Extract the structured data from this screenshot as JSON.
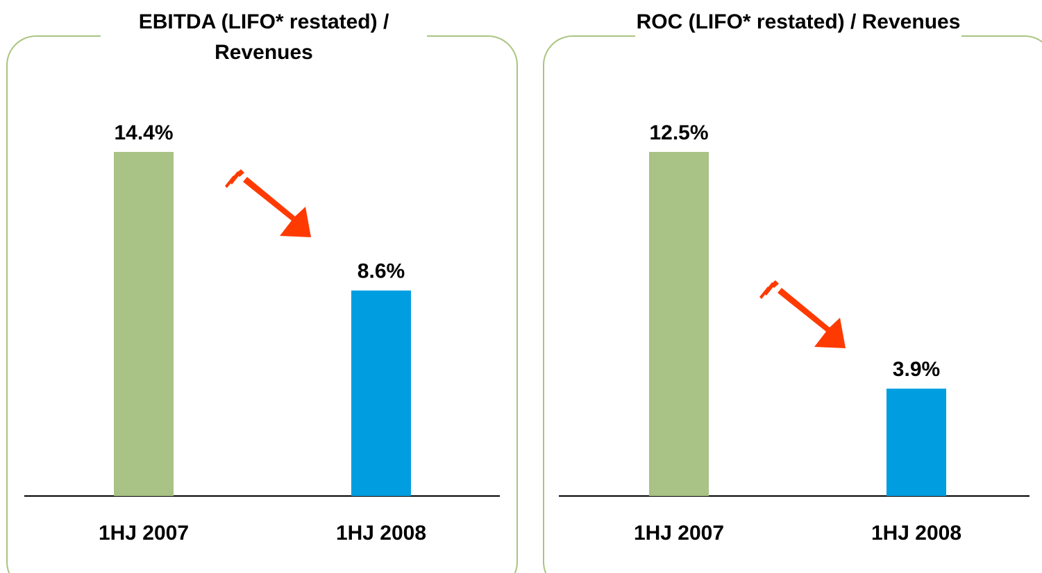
{
  "chart_data": [
    {
      "type": "bar",
      "title": "EBITDA (LIFO* restated) / Revenues",
      "categories": [
        "1HJ 2007",
        "1HJ 2008"
      ],
      "values": [
        14.4,
        8.6
      ],
      "value_labels": [
        "14.4%",
        "8.6%"
      ],
      "colors": [
        "#a9c285",
        "#009ee0"
      ]
    },
    {
      "type": "bar",
      "title": "ROC (LIFO* restated) / Revenues",
      "categories": [
        "1HJ 2007",
        "1HJ 2008"
      ],
      "values": [
        12.5,
        3.9
      ],
      "value_labels": [
        "12.5%",
        "3.9%"
      ],
      "colors": [
        "#a9c285",
        "#009ee0"
      ]
    }
  ]
}
